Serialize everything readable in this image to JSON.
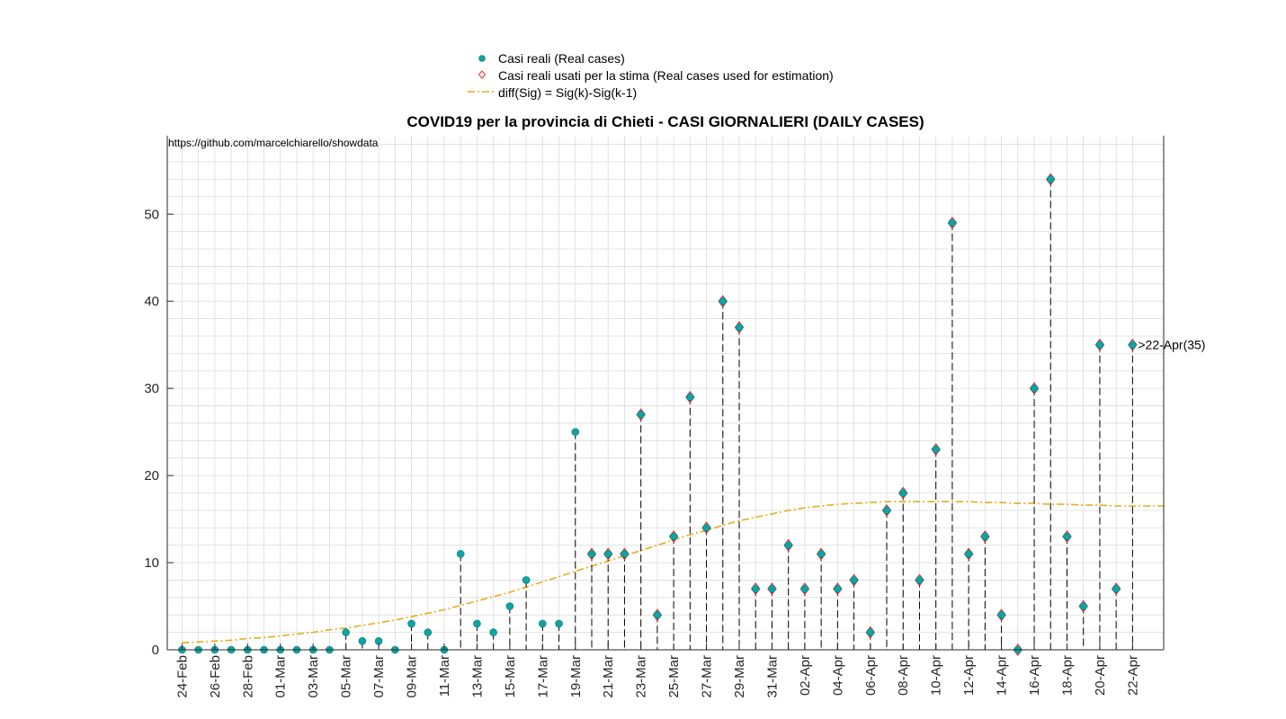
{
  "chart_data": {
    "type": "scatter",
    "title": "COVID19 per la provincia di Chieti - CASI GIORNALIERI (DAILY CASES)",
    "source_note": "https://github.com/marcelchiarello/showdata",
    "xlabel": "",
    "ylabel": "",
    "ylim": [
      0,
      59
    ],
    "yticks": [
      0,
      10,
      20,
      30,
      40,
      50
    ],
    "grid": true,
    "legend_position": "top",
    "categories": [
      "24-Feb",
      "25-Feb",
      "26-Feb",
      "27-Feb",
      "28-Feb",
      "29-Feb",
      "01-Mar",
      "02-Mar",
      "03-Mar",
      "04-Mar",
      "05-Mar",
      "06-Mar",
      "07-Mar",
      "08-Mar",
      "09-Mar",
      "10-Mar",
      "11-Mar",
      "12-Mar",
      "13-Mar",
      "14-Mar",
      "15-Mar",
      "16-Mar",
      "17-Mar",
      "18-Mar",
      "19-Mar",
      "20-Mar",
      "21-Mar",
      "22-Mar",
      "23-Mar",
      "24-Mar",
      "25-Mar",
      "26-Mar",
      "27-Mar",
      "28-Mar",
      "29-Mar",
      "30-Mar",
      "31-Mar",
      "01-Apr",
      "02-Apr",
      "03-Apr",
      "04-Apr",
      "05-Apr",
      "06-Apr",
      "07-Apr",
      "08-Apr",
      "09-Apr",
      "10-Apr",
      "11-Apr",
      "12-Apr",
      "13-Apr",
      "14-Apr",
      "15-Apr",
      "16-Apr",
      "17-Apr",
      "18-Apr",
      "19-Apr",
      "20-Apr",
      "21-Apr",
      "22-Apr"
    ],
    "tick_labels": [
      "24-Feb",
      "26-Feb",
      "28-Feb",
      "01-Mar",
      "03-Mar",
      "05-Mar",
      "07-Mar",
      "09-Mar",
      "11-Mar",
      "13-Mar",
      "15-Mar",
      "17-Mar",
      "19-Mar",
      "21-Mar",
      "23-Mar",
      "25-Mar",
      "27-Mar",
      "29-Mar",
      "31-Mar",
      "02-Apr",
      "04-Apr",
      "06-Apr",
      "08-Apr",
      "10-Apr",
      "12-Apr",
      "14-Apr",
      "16-Apr",
      "18-Apr",
      "20-Apr",
      "22-Apr"
    ],
    "series": [
      {
        "name": "Casi reali (Real cases)",
        "marker": "filled-circle",
        "color": "#0fa3a3",
        "values": [
          0,
          0,
          0,
          0,
          0,
          0,
          0,
          0,
          0,
          0,
          2,
          1,
          1,
          0,
          3,
          2,
          0,
          11,
          3,
          2,
          5,
          8,
          3,
          3,
          25,
          11,
          11,
          11,
          27,
          4,
          13,
          29,
          14,
          40,
          37,
          7,
          7,
          12,
          7,
          11,
          7,
          8,
          2,
          16,
          18,
          8,
          23,
          49,
          11,
          13,
          4,
          0,
          30,
          54,
          13,
          5,
          35,
          7,
          35
        ]
      },
      {
        "name": "Casi reali usati per la stima (Real cases used for estimation)",
        "marker": "open-diamond",
        "color": "#e8302a",
        "start_index": 25
      },
      {
        "name": "diff(Sig) = Sig(k)-Sig(k-1)",
        "line_style": "dash-dot",
        "color": "#e6ae1a",
        "values": [
          0.8,
          0.9,
          1.0,
          1.1,
          1.3,
          1.4,
          1.6,
          1.8,
          2.0,
          2.3,
          2.5,
          2.8,
          3.1,
          3.4,
          3.8,
          4.2,
          4.6,
          5.1,
          5.6,
          6.1,
          6.6,
          7.2,
          7.8,
          8.4,
          9.0,
          9.6,
          10.2,
          10.8,
          11.4,
          12.0,
          12.6,
          13.2,
          13.7,
          14.3,
          14.8,
          15.2,
          15.6,
          16.0,
          16.3,
          16.5,
          16.7,
          16.8,
          16.9,
          17.0,
          17.0,
          17.0,
          17.0,
          17.0,
          17.0,
          16.9,
          16.9,
          16.8,
          16.8,
          16.7,
          16.7,
          16.6,
          16.6,
          16.5,
          16.5
        ],
        "extends_to": 59.9,
        "extends_value": 16.5
      }
    ],
    "annotation": {
      "text": ">22-Apr(35)",
      "index": 58,
      "value": 35
    }
  },
  "colors": {
    "real": "#0fa3a3",
    "estimation": "#e8302a",
    "fit": "#e6ae1a",
    "grid": "#dcdcdc",
    "axis": "#262626"
  }
}
